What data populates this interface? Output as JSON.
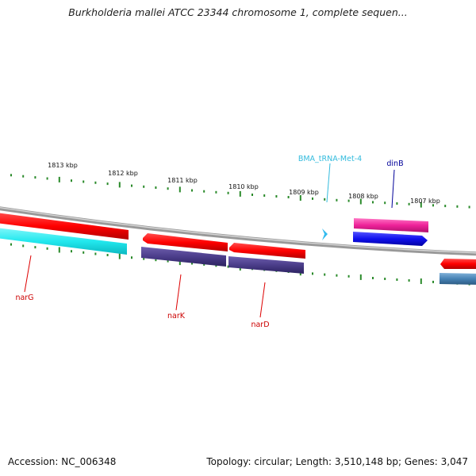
{
  "title": "Burkholderia mallei ATCC 23344 chromosome 1, complete sequen...",
  "footer": {
    "accession": "Accession: NC_006348",
    "summary": "Topology: circular; Length: 3,510,148 bp; Genes: 3,047"
  },
  "scale_labels": [
    "1813 kbp",
    "1812 kbp",
    "1811 kbp",
    "1810 kbp",
    "1809 kbp",
    "1808 kbp",
    "1807 kbp"
  ],
  "genes": [
    {
      "name": "narG",
      "color": "#cc0000"
    },
    {
      "name": "narK",
      "color": "#cc0000"
    },
    {
      "name": "narD",
      "color": "#cc0000"
    },
    {
      "name": "BMA_tRNA-Met-4",
      "color": "#33bbdd"
    },
    {
      "name": "dinB",
      "color": "#000099"
    }
  ],
  "colors": {
    "cds": "#ff1a1a",
    "cds_dark": "#b30000",
    "rrna_cyan": "#22e8ee",
    "purple": "#4b3d8a",
    "magenta": "#ee2299",
    "blue": "#1010ee",
    "steel": "#4682b4",
    "trna": "#33bbee",
    "tick": "#2a8a2a",
    "backbone": "#888888"
  }
}
